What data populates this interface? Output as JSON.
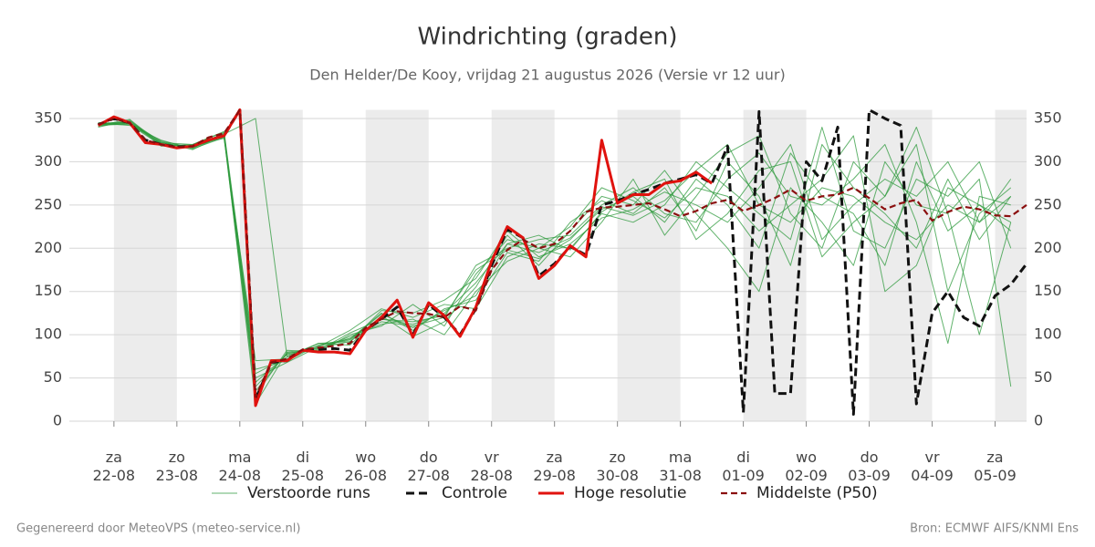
{
  "chart_data": {
    "type": "line",
    "title": "Windrichting (graden)",
    "subtitle": "Den Helder/De Kooy, vrijdag 21 augustus 2026 (Versie vr 12 uur)",
    "footer_left": "Gegenereerd door MeteoVPS (meteo-service.nl)",
    "footer_right": "Bron: ECMWF AIFS/KNMI Ens",
    "xlim": [
      -17,
      348
    ],
    "ylim": [
      0,
      360
    ],
    "yticks": [
      0,
      50,
      100,
      150,
      200,
      250,
      300,
      350
    ],
    "xticks": [
      {
        "value": 0,
        "label": "za\n22-08"
      },
      {
        "value": 24,
        "label": "zo\n23-08"
      },
      {
        "value": 48,
        "label": "ma\n24-08"
      },
      {
        "value": 72,
        "label": "di\n25-08"
      },
      {
        "value": 96,
        "label": "wo\n26-08"
      },
      {
        "value": 120,
        "label": "do\n27-08"
      },
      {
        "value": 144,
        "label": "vr\n28-08"
      },
      {
        "value": 168,
        "label": "za\n29-08"
      },
      {
        "value": 192,
        "label": "zo\n30-08"
      },
      {
        "value": 216,
        "label": "ma\n31-08"
      },
      {
        "value": 240,
        "label": "di\n01-09"
      },
      {
        "value": 264,
        "label": "wo\n02-09"
      },
      {
        "value": 288,
        "label": "do\n03-09"
      },
      {
        "value": 312,
        "label": "vr\n04-09"
      },
      {
        "value": 336,
        "label": "za\n05-09"
      }
    ],
    "grid": true,
    "x": [
      -6,
      0,
      6,
      12,
      18,
      24,
      30,
      36,
      42,
      48,
      54,
      60,
      66,
      72,
      78,
      84,
      90,
      96,
      102,
      108,
      114,
      120,
      126,
      132,
      138,
      144,
      150,
      156,
      162,
      168,
      174,
      180,
      186,
      192,
      198,
      204,
      210,
      216,
      222,
      228,
      234,
      240,
      246,
      252,
      258,
      264,
      270,
      276,
      282,
      288,
      294,
      300,
      306,
      312,
      318,
      324,
      330,
      336,
      342,
      348
    ],
    "series": [
      {
        "name": "Verstoorde runs",
        "color": "#2e9a3c",
        "style": "thin",
        "x": [
          -6,
          6,
          18,
          30,
          42,
          54,
          66,
          78,
          90,
          102,
          114,
          126,
          138,
          150,
          162,
          174,
          186,
          198,
          210,
          222,
          234,
          246,
          258,
          270,
          282,
          294,
          306,
          318,
          330,
          342
        ],
        "members": [
          [
            343,
            345,
            322,
            316,
            330,
            40,
            78,
            85,
            92,
            118,
            112,
            125,
            160,
            205,
            195,
            212,
            245,
            260,
            230,
            280,
            250,
            200,
            310,
            260,
            240,
            180,
            300,
            220,
            250,
            230
          ],
          [
            340,
            348,
            318,
            320,
            335,
            60,
            70,
            88,
            95,
            125,
            105,
            130,
            140,
            195,
            185,
            230,
            255,
            240,
            270,
            220,
            300,
            260,
            180,
            320,
            270,
            240,
            200,
            280,
            210,
            260
          ],
          [
            345,
            342,
            325,
            315,
            328,
            30,
            82,
            80,
            100,
            110,
            135,
            110,
            170,
            210,
            200,
            190,
            230,
            280,
            215,
            260,
            310,
            330,
            240,
            200,
            300,
            260,
            320,
            150,
            240,
            270
          ],
          [
            342,
            344,
            320,
            318,
            332,
            350,
            75,
            90,
            88,
            122,
            98,
            115,
            155,
            215,
            180,
            220,
            260,
            250,
            290,
            240,
            200,
            150,
            270,
            230,
            180,
            300,
            250,
            240,
            100,
            230
          ],
          [
            344,
            346,
            321,
            317,
            329,
            50,
            68,
            86,
            105,
            130,
            120,
            135,
            130,
            190,
            205,
            200,
            240,
            230,
            250,
            300,
            270,
            240,
            210,
            340,
            220,
            200,
            280,
            260,
            300,
            200
          ],
          [
            341,
            347,
            323,
            314,
            331,
            20,
            80,
            84,
            96,
            115,
            110,
            120,
            180,
            200,
            210,
            215,
            250,
            270,
            240,
            230,
            280,
            310,
            260,
            250,
            280,
            320,
            230,
            90,
            260,
            250
          ],
          [
            343,
            343,
            319,
            319,
            327,
            70,
            72,
            90,
            92,
            128,
            125,
            140,
            165,
            220,
            190,
            205,
            235,
            245,
            265,
            250,
            230,
            270,
            320,
            210,
            250,
            280,
            260,
            300,
            230,
            280
          ],
          [
            345,
            345,
            324,
            316,
            333,
            45,
            77,
            83,
            98,
            112,
            118,
            100,
            150,
            185,
            200,
            225,
            270,
            255,
            235,
            270,
            260,
            220,
            250,
            280,
            330,
            150,
            180,
            270,
            250,
            220
          ],
          [
            342,
            349,
            320,
            317,
            330,
            55,
            74,
            87,
            94,
            124,
            108,
            128,
            145,
            205,
            215,
            198,
            242,
            265,
            280,
            210,
            240,
            290,
            300,
            190,
            230,
            260,
            340,
            240,
            280,
            40
          ],
          [
            344,
            344,
            322,
            320,
            334,
            35,
            79,
            82,
            102,
            118,
            115,
            122,
            175,
            198,
            188,
            210,
            248,
            238,
            255,
            290,
            320,
            250,
            230,
            270,
            260,
            230,
            210,
            250,
            230,
            260
          ]
        ]
      },
      {
        "name": "Controle",
        "color": "#111111",
        "style": "dashed",
        "values": [
          343,
          350,
          345,
          325,
          320,
          317,
          318,
          325,
          330,
          360,
          25,
          68,
          70,
          82,
          83,
          84,
          82,
          105,
          118,
          132,
          100,
          135,
          120,
          100,
          130,
          180,
          222,
          212,
          168,
          182,
          202,
          192,
          250,
          255,
          262,
          268,
          275,
          280,
          285,
          275,
          318,
          10,
          358,
          32,
          32,
          300,
          278,
          340,
          8,
          360,
          350,
          342,
          20,
          125,
          150,
          120,
          110,
          145,
          158,
          182
        ]
      },
      {
        "name": "Hoge resolutie",
        "color": "#e0120e",
        "style": "thick",
        "values": [
          342,
          352,
          345,
          322,
          320,
          316,
          318,
          325,
          330,
          360,
          18,
          70,
          70,
          82,
          80,
          80,
          78,
          105,
          120,
          140,
          97,
          137,
          122,
          98,
          132,
          185,
          225,
          212,
          165,
          180,
          203,
          190,
          325,
          252,
          262,
          262,
          275,
          278,
          288,
          275,
          null,
          null,
          null,
          null,
          null,
          null,
          null,
          null,
          null,
          null,
          null,
          null,
          null,
          null,
          null,
          null,
          null,
          null,
          null,
          null
        ]
      },
      {
        "name": "Middelste (P50)",
        "color": "#8b0f0f",
        "style": "dashed-thin",
        "values": [
          343,
          350,
          345,
          325,
          320,
          317,
          318,
          328,
          333,
          360,
          28,
          68,
          72,
          83,
          85,
          87,
          90,
          108,
          118,
          127,
          125,
          124,
          120,
          133,
          128,
          175,
          198,
          210,
          200,
          205,
          220,
          242,
          247,
          248,
          250,
          252,
          245,
          237,
          243,
          252,
          256,
          243,
          250,
          258,
          268,
          255,
          260,
          262,
          270,
          258,
          245,
          252,
          256,
          232,
          242,
          248,
          245,
          238,
          237,
          250
        ]
      }
    ]
  }
}
